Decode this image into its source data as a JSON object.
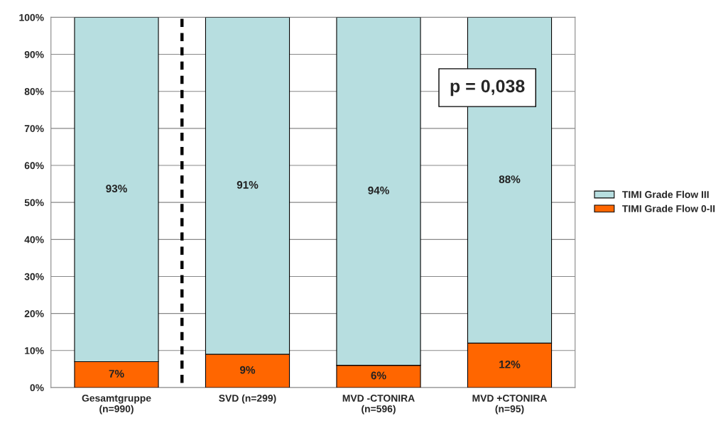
{
  "chart_data": {
    "type": "bar",
    "stacked": true,
    "categories": [
      "Gesamtgruppe\n(n=990)",
      "SVD (n=299)",
      "MVD -CTONIRA\n(n=596)",
      "MVD +CTONIRA\n(n=95)"
    ],
    "series": [
      {
        "name": "TIMI Grade Flow 0-II",
        "color": "#ff6600",
        "values": [
          7,
          9,
          6,
          12
        ],
        "value_labels": [
          "7%",
          "9%",
          "6%",
          "12%"
        ]
      },
      {
        "name": "TIMI Grade Flow III",
        "color": "#b7dee0",
        "values": [
          93,
          91,
          94,
          88
        ],
        "value_labels": [
          "93%",
          "91%",
          "94%",
          "88%"
        ]
      }
    ],
    "ylim": [
      0,
      100
    ],
    "yticks": [
      {
        "value": 0,
        "label": "0%"
      },
      {
        "value": 10,
        "label": "10%"
      },
      {
        "value": 20,
        "label": "20%"
      },
      {
        "value": 30,
        "label": "30%"
      },
      {
        "value": 40,
        "label": "40%"
      },
      {
        "value": 50,
        "label": "50%"
      },
      {
        "value": 60,
        "label": "60%"
      },
      {
        "value": 70,
        "label": "70%"
      },
      {
        "value": 80,
        "label": "80%"
      },
      {
        "value": 90,
        "label": "90%"
      },
      {
        "value": 100,
        "label": "100%"
      }
    ],
    "grid": "y",
    "legend": "right",
    "annotations": [
      "p = 0,038"
    ]
  }
}
